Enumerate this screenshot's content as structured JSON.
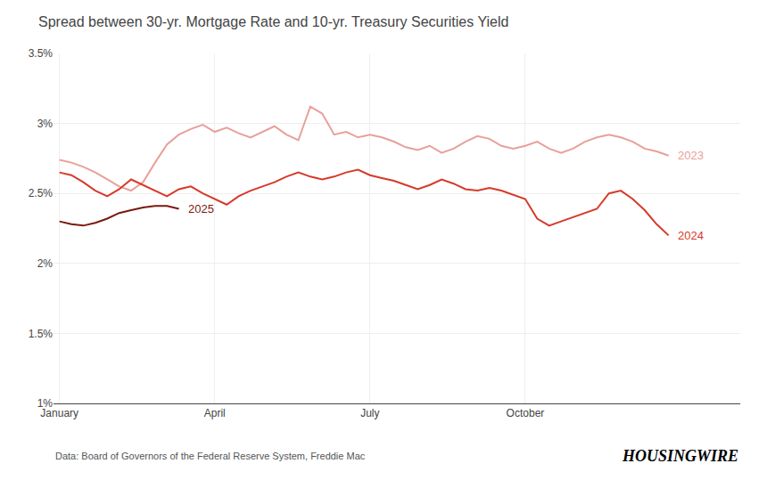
{
  "chart_data": {
    "type": "line",
    "title": "Spread between 30-yr. Mortgage Rate and 10-yr. Treasury Securities Yield",
    "annotations": [
      "Data: Board of Governors of the Federal Reserve System, Freddie Mac",
      "HOUSINGWIRE"
    ],
    "xlim": [
      -0.5,
      57
    ],
    "xticks": [
      {
        "value": 0,
        "label": "January"
      },
      {
        "value": 13,
        "label": "April"
      },
      {
        "value": 26,
        "label": "July"
      },
      {
        "value": 39,
        "label": "October"
      }
    ],
    "ylim": [
      1.0,
      3.5
    ],
    "yticks": [
      {
        "value": 1.0,
        "label": "1%"
      },
      {
        "value": 1.5,
        "label": "1.5%"
      },
      {
        "value": 2.0,
        "label": "2%"
      },
      {
        "value": 2.5,
        "label": "2.5%"
      },
      {
        "value": 3.0,
        "label": "3%"
      },
      {
        "value": 3.5,
        "label": "3.5%"
      }
    ],
    "grid": true,
    "series": [
      {
        "name": "2023",
        "color": "#e8a09a",
        "x": [
          0,
          1,
          2,
          3,
          4,
          5,
          6,
          7,
          8,
          9,
          10,
          11,
          12,
          13,
          14,
          15,
          16,
          17,
          18,
          19,
          20,
          21,
          22,
          23,
          24,
          25,
          26,
          27,
          28,
          29,
          30,
          31,
          32,
          33,
          34,
          35,
          36,
          37,
          38,
          39,
          40,
          41,
          42,
          43,
          44,
          45,
          46,
          47,
          48,
          49,
          50,
          51
        ],
        "values": [
          2.74,
          2.72,
          2.69,
          2.65,
          2.6,
          2.55,
          2.52,
          2.58,
          2.72,
          2.85,
          2.92,
          2.96,
          2.99,
          2.94,
          2.97,
          2.93,
          2.9,
          2.94,
          2.98,
          2.92,
          2.88,
          3.12,
          3.07,
          2.92,
          2.94,
          2.9,
          2.92,
          2.9,
          2.87,
          2.83,
          2.81,
          2.84,
          2.79,
          2.82,
          2.87,
          2.91,
          2.89,
          2.84,
          2.82,
          2.84,
          2.87,
          2.82,
          2.79,
          2.82,
          2.87,
          2.9,
          2.92,
          2.9,
          2.87,
          2.82,
          2.8,
          2.77
        ]
      },
      {
        "name": "2024",
        "color": "#d63a2a",
        "x": [
          0,
          1,
          2,
          3,
          4,
          5,
          6,
          7,
          8,
          9,
          10,
          11,
          12,
          13,
          14,
          15,
          16,
          17,
          18,
          19,
          20,
          21,
          22,
          23,
          24,
          25,
          26,
          27,
          28,
          29,
          30,
          31,
          32,
          33,
          34,
          35,
          36,
          37,
          38,
          39,
          40,
          41,
          42,
          43,
          44,
          45,
          46,
          47,
          48,
          49,
          50,
          51
        ],
        "values": [
          2.65,
          2.63,
          2.58,
          2.52,
          2.48,
          2.53,
          2.6,
          2.56,
          2.52,
          2.48,
          2.53,
          2.55,
          2.5,
          2.46,
          2.42,
          2.48,
          2.52,
          2.55,
          2.58,
          2.62,
          2.65,
          2.62,
          2.6,
          2.62,
          2.65,
          2.67,
          2.63,
          2.61,
          2.59,
          2.56,
          2.53,
          2.56,
          2.6,
          2.57,
          2.53,
          2.52,
          2.54,
          2.52,
          2.49,
          2.46,
          2.32,
          2.27,
          2.3,
          2.33,
          2.36,
          2.39,
          2.5,
          2.52,
          2.46,
          2.38,
          2.28,
          2.2
        ]
      },
      {
        "name": "2025",
        "color": "#7a1a0e",
        "x": [
          0,
          1,
          2,
          3,
          4,
          5,
          6,
          7,
          8,
          9,
          10
        ],
        "values": [
          2.3,
          2.28,
          2.27,
          2.29,
          2.32,
          2.36,
          2.38,
          2.4,
          2.41,
          2.41,
          2.39
        ]
      }
    ]
  }
}
